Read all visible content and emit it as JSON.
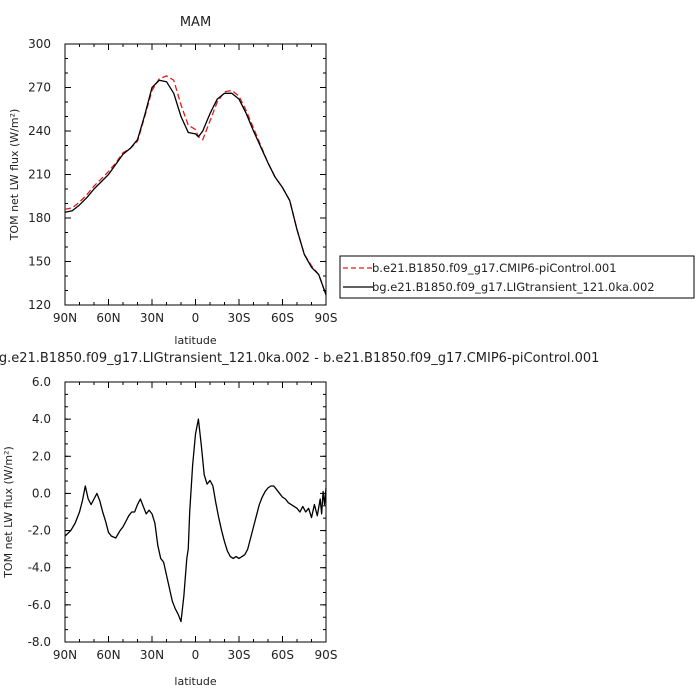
{
  "chart_data": [
    {
      "type": "line",
      "title": "MAM",
      "xlabel": "latitude",
      "ylabel": "TOM net LW flux (W/m²)",
      "xlim": [
        90,
        -90
      ],
      "ylim": [
        120,
        300
      ],
      "x_ticks": [
        90,
        60,
        30,
        0,
        -30,
        -60,
        -90
      ],
      "x_tick_labels": [
        "90N",
        "60N",
        "30N",
        "0",
        "30S",
        "60S",
        "90S"
      ],
      "y_ticks": [
        120,
        150,
        180,
        210,
        240,
        270,
        300
      ],
      "y_tick_labels": [
        "120",
        "150",
        "180",
        "210",
        "240",
        "270",
        "300"
      ],
      "legend_position": "right",
      "series": [
        {
          "name": "b.e21.B1850.f09_g17.CMIP6-piControl.001",
          "color": "#e41a1c",
          "dash": "dashed",
          "x": [
            90,
            85,
            80,
            75,
            70,
            65,
            60,
            55,
            50,
            45,
            40,
            35,
            30,
            25,
            20,
            15,
            10,
            5,
            0,
            -2,
            -5,
            -10,
            -15,
            -20,
            -25,
            -30,
            -35,
            -40,
            -45,
            -50,
            -55,
            -60,
            -65,
            -70,
            -75,
            -80,
            -85,
            -90
          ],
          "y": [
            186,
            187,
            191,
            196,
            202,
            207,
            212,
            218,
            225,
            228,
            233,
            250,
            268,
            276,
            278,
            275,
            258,
            244,
            241,
            236,
            234,
            247,
            260,
            267,
            268,
            264,
            254,
            242,
            230,
            218,
            208,
            201,
            192,
            172,
            155,
            147,
            141,
            127
          ]
        },
        {
          "name": "bg.e21.B1850.f09_g17.LIGtransient_121.0ka.002",
          "color": "#000000",
          "dash": "solid",
          "x": [
            90,
            85,
            80,
            75,
            70,
            65,
            60,
            55,
            50,
            45,
            40,
            35,
            30,
            25,
            20,
            15,
            10,
            5,
            0,
            -2,
            -5,
            -10,
            -15,
            -20,
            -25,
            -30,
            -35,
            -40,
            -45,
            -50,
            -55,
            -60,
            -65,
            -70,
            -75,
            -80,
            -85,
            -90
          ],
          "y": [
            184,
            185,
            189,
            194,
            200,
            205,
            210,
            217,
            224,
            228,
            234,
            251,
            270,
            275,
            274,
            266,
            250,
            239,
            238,
            236,
            240,
            252,
            262,
            266,
            266,
            262,
            252,
            240,
            229,
            218,
            208,
            201,
            192,
            172,
            155,
            146,
            141,
            127
          ]
        }
      ]
    },
    {
      "type": "line",
      "title": "bg.e21.B1850.f09_g17.LIGtransient_121.0ka.002 - b.e21.B1850.f09_g17.CMIP6-piControl.001",
      "xlabel": "latitude",
      "ylabel": "TOM net LW flux (W/m²)",
      "xlim": [
        90,
        -90
      ],
      "ylim": [
        -8,
        6
      ],
      "x_ticks": [
        90,
        60,
        30,
        0,
        -30,
        -60,
        -90
      ],
      "x_tick_labels": [
        "90N",
        "60N",
        "30N",
        "0",
        "30S",
        "60S",
        "90S"
      ],
      "y_ticks": [
        -8,
        -6,
        -4,
        -2,
        0,
        2,
        4,
        6
      ],
      "y_tick_labels": [
        "-8.0",
        "-6.0",
        "-4.0",
        "-2.0",
        "0.0",
        "2.0",
        "4.0",
        "6.0"
      ],
      "series": [
        {
          "color": "#000000",
          "dash": "solid",
          "x": [
            90,
            86,
            83,
            80,
            78,
            76,
            74,
            72,
            70,
            68,
            66,
            64,
            62,
            60,
            58,
            55,
            52,
            50,
            48,
            46,
            44,
            42,
            40,
            38,
            36,
            34,
            32,
            30,
            28,
            26,
            24,
            22,
            20,
            18,
            16,
            14,
            12,
            10,
            8,
            6,
            5,
            4,
            2,
            0,
            -2,
            -4,
            -6,
            -8,
            -10,
            -12,
            -14,
            -16,
            -18,
            -20,
            -22,
            -24,
            -26,
            -28,
            -30,
            -32,
            -34,
            -36,
            -38,
            -40,
            -42,
            -44,
            -46,
            -48,
            -50,
            -52,
            -54,
            -56,
            -58,
            -60,
            -62,
            -64,
            -66,
            -68,
            -70,
            -72,
            -74,
            -76,
            -78,
            -80,
            -82,
            -84,
            -86,
            -87,
            -88,
            -89,
            -90
          ],
          "y": [
            -2.3,
            -2.0,
            -1.6,
            -1.0,
            -0.4,
            0.4,
            -0.3,
            -0.6,
            -0.3,
            0.0,
            -0.4,
            -1.0,
            -1.5,
            -2.1,
            -2.3,
            -2.4,
            -2.0,
            -1.8,
            -1.5,
            -1.2,
            -1.0,
            -1.0,
            -0.6,
            -0.3,
            -0.7,
            -1.1,
            -0.9,
            -1.1,
            -1.6,
            -2.8,
            -3.5,
            -3.7,
            -4.4,
            -5.1,
            -5.8,
            -6.2,
            -6.5,
            -6.9,
            -5.5,
            -3.5,
            -3.0,
            -1.0,
            1.5,
            3.2,
            4.0,
            2.6,
            1.0,
            0.5,
            0.7,
            0.4,
            -0.5,
            -1.3,
            -2.0,
            -2.6,
            -3.1,
            -3.4,
            -3.5,
            -3.4,
            -3.5,
            -3.4,
            -3.3,
            -3.0,
            -2.4,
            -1.8,
            -1.2,
            -0.6,
            -0.2,
            0.1,
            0.3,
            0.4,
            0.4,
            0.2,
            0.0,
            -0.2,
            -0.3,
            -0.5,
            -0.6,
            -0.7,
            -0.8,
            -1.0,
            -0.7,
            -1.0,
            -0.8,
            -1.3,
            -0.6,
            -1.2,
            -0.3,
            -1.1,
            0.1,
            -0.6,
            0.3
          ]
        }
      ]
    }
  ]
}
